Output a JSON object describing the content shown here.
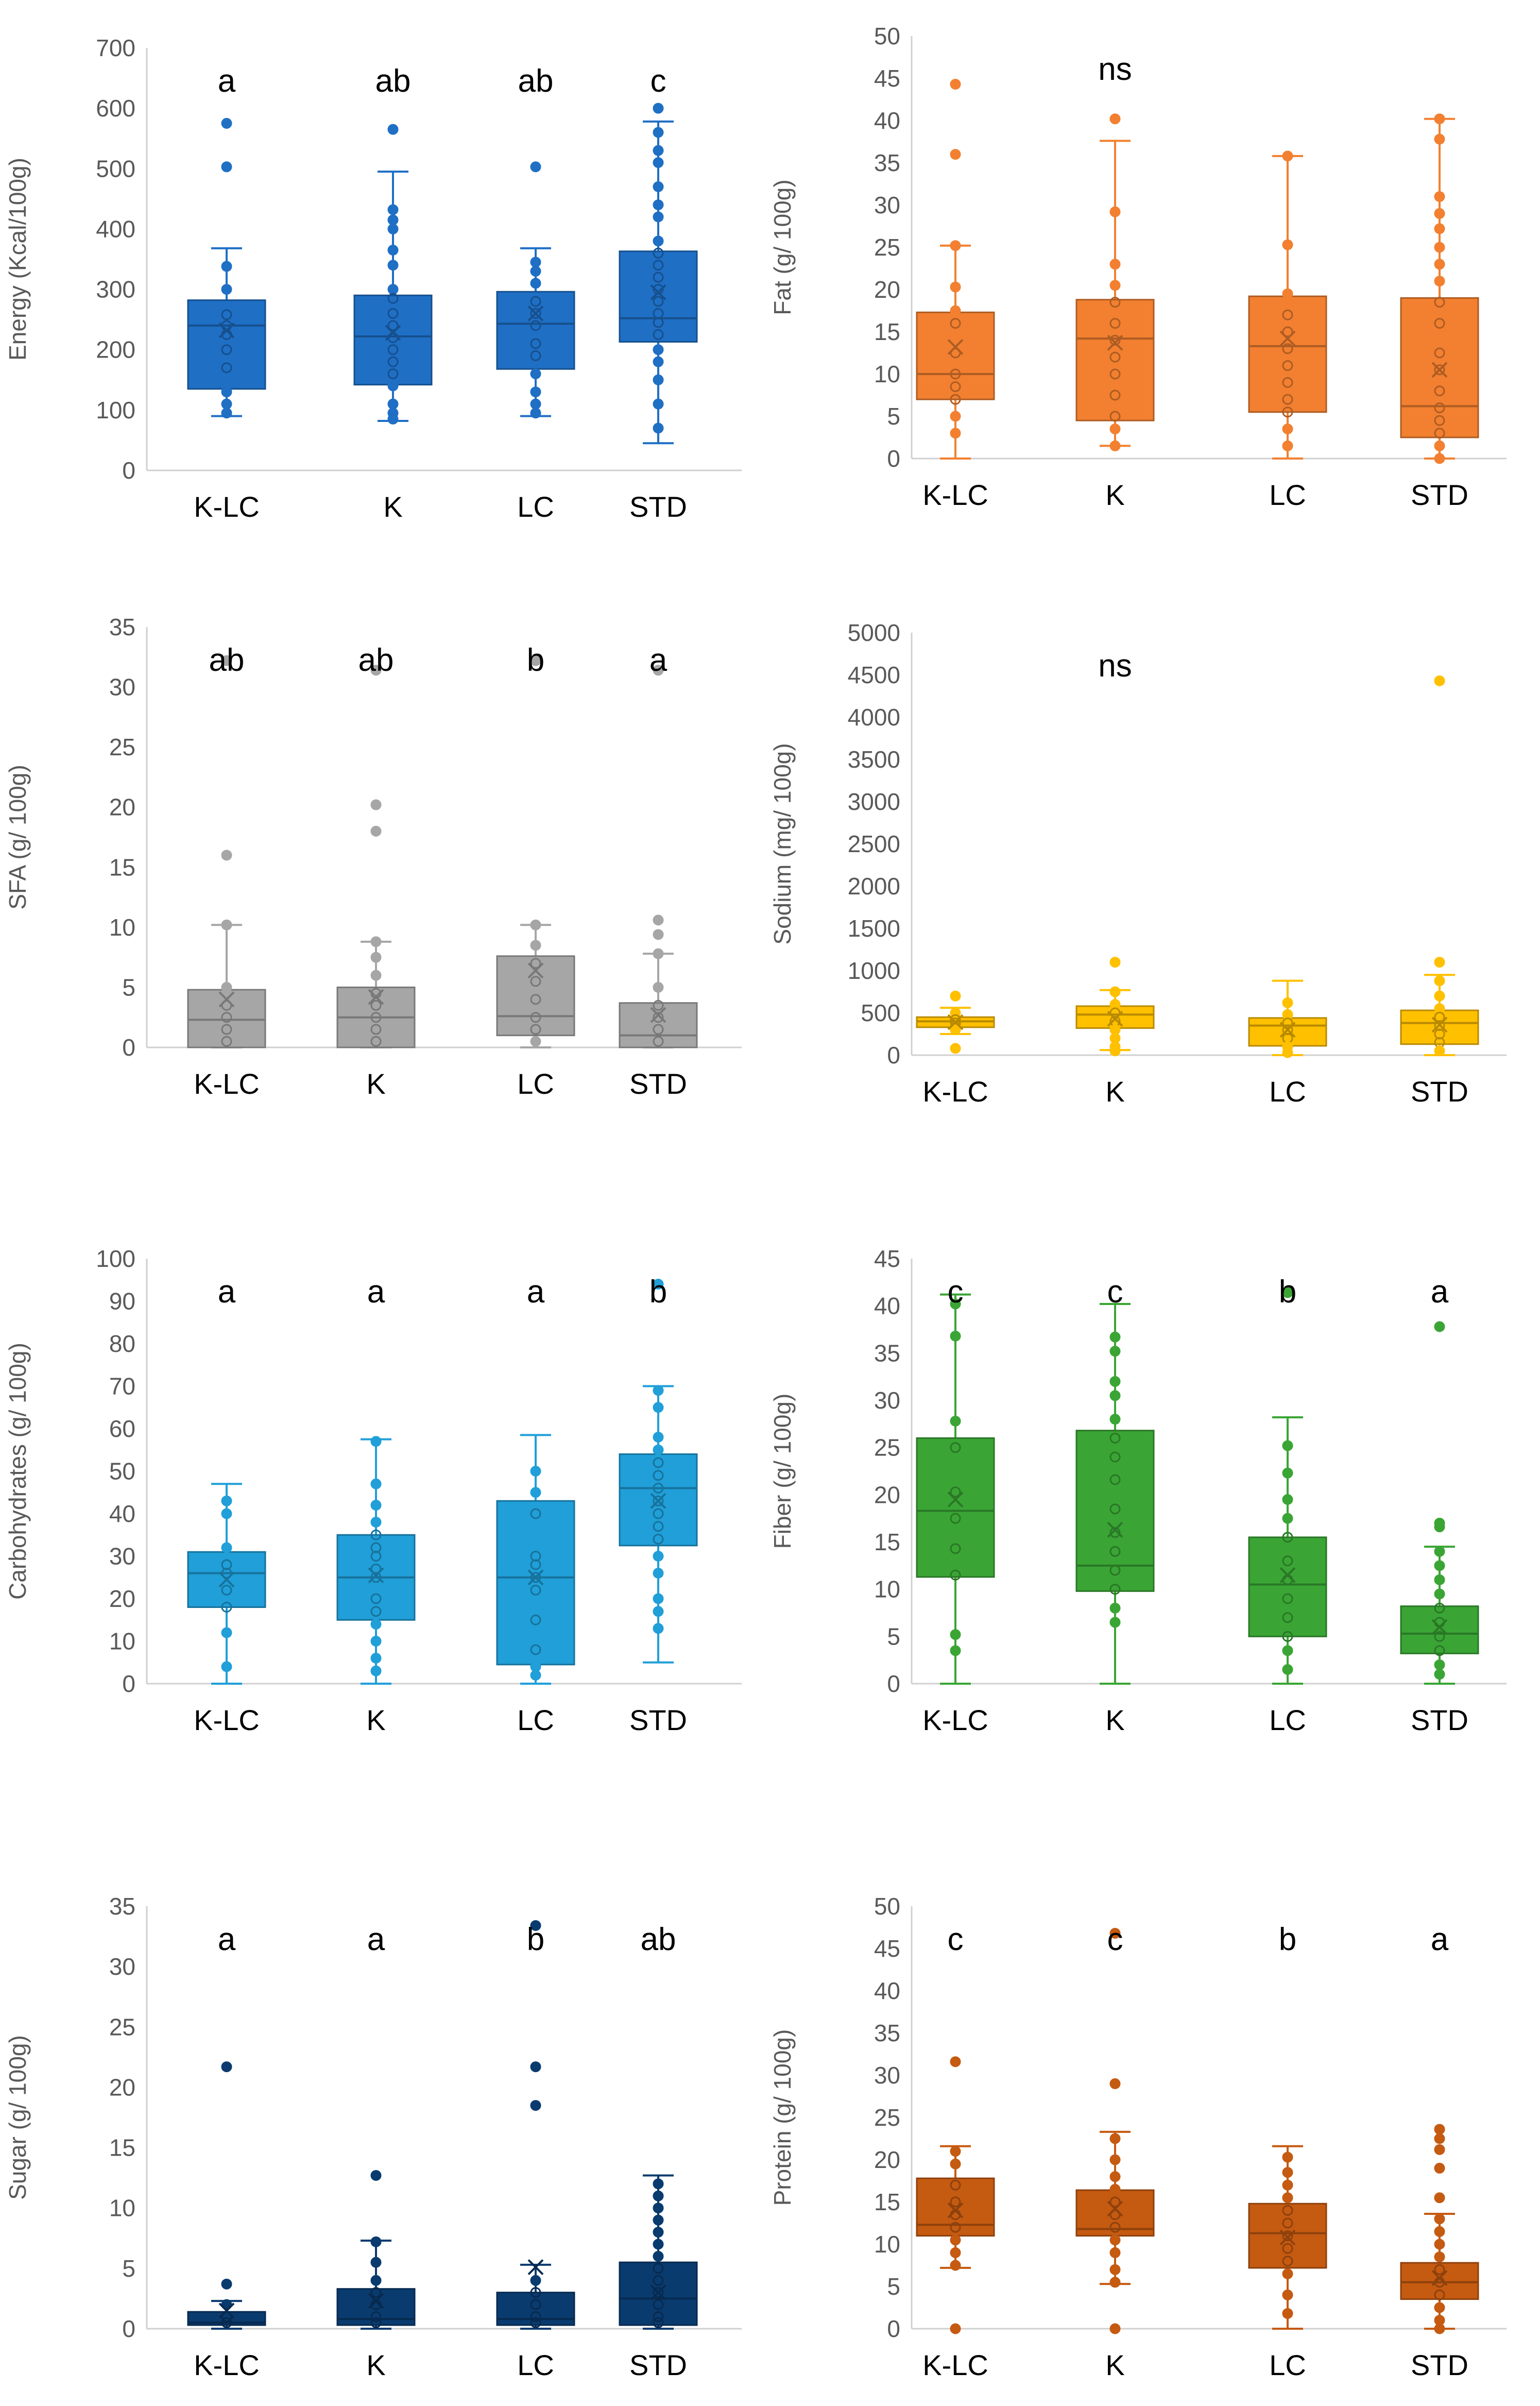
{
  "chart_data": [
    {
      "type": "box",
      "ylabel": "Energy (Kcal/100g)",
      "ylim": [
        0,
        700
      ],
      "yticks": [
        0,
        100,
        200,
        300,
        400,
        500,
        600,
        700
      ],
      "color": "#1F6FC5",
      "categories": [
        "K-LC",
        "K",
        "LC",
        "STD"
      ],
      "letters": [
        "a",
        "ab",
        "ab",
        "c"
      ],
      "boxes": [
        {
          "whisker_low": 90,
          "q1": 135,
          "median": 240,
          "q3": 282,
          "whisker_high": 368,
          "mean": 232,
          "points": [
            575,
            503,
            338,
            300,
            258,
            240,
            225,
            200,
            170,
            130,
            110,
            95
          ]
        },
        {
          "whisker_low": 82,
          "q1": 142,
          "median": 222,
          "q3": 290,
          "whisker_high": 495,
          "mean": 228,
          "points": [
            565,
            432,
            415,
            400,
            365,
            340,
            300,
            285,
            260,
            240,
            220,
            200,
            180,
            160,
            140,
            110,
            95,
            85
          ]
        },
        {
          "whisker_low": 90,
          "q1": 168,
          "median": 243,
          "q3": 296,
          "whisker_high": 368,
          "mean": 260,
          "points": [
            503,
            345,
            330,
            310,
            280,
            260,
            240,
            210,
            190,
            160,
            130,
            110,
            95
          ]
        },
        {
          "whisker_low": 45,
          "q1": 213,
          "median": 252,
          "q3": 363,
          "whisker_high": 578,
          "mean": 295,
          "points": [
            600,
            560,
            530,
            510,
            470,
            440,
            420,
            380,
            360,
            340,
            320,
            300,
            280,
            260,
            245,
            225,
            200,
            180,
            150,
            110,
            70
          ]
        }
      ]
    },
    {
      "type": "box",
      "ylabel": "Fat (g/ 100g)",
      "ylim": [
        0,
        50
      ],
      "yticks": [
        0,
        5,
        10,
        15,
        20,
        25,
        30,
        35,
        40,
        45,
        50
      ],
      "color": "#F28030",
      "categories": [
        "K-LC",
        "K",
        "LC",
        "STD"
      ],
      "letters": [
        "",
        "ns",
        "",
        ""
      ],
      "boxes": [
        {
          "whisker_low": 0,
          "q1": 7,
          "median": 10,
          "q3": 17.3,
          "whisker_high": 25.2,
          "mean": 13.2,
          "points": [
            44.3,
            36,
            25.2,
            20.3,
            17.5,
            16,
            12.5,
            10,
            8.5,
            7,
            5,
            3
          ]
        },
        {
          "whisker_low": 1.5,
          "q1": 4.5,
          "median": 14.2,
          "q3": 18.8,
          "whisker_high": 37.6,
          "mean": 13.7,
          "points": [
            40.2,
            29.2,
            23,
            20.5,
            18.5,
            16,
            14,
            12,
            10,
            7.5,
            5,
            3.5,
            1.5
          ]
        },
        {
          "whisker_low": 0,
          "q1": 5.5,
          "median": 13.3,
          "q3": 19.2,
          "whisker_high": 35.8,
          "mean": 14.2,
          "points": [
            35.8,
            25.3,
            19.5,
            17,
            15,
            13,
            11,
            9,
            7,
            5.5,
            3.5,
            1.5
          ]
        },
        {
          "whisker_low": 0,
          "q1": 2.5,
          "median": 6.2,
          "q3": 19,
          "whisker_high": 40.2,
          "mean": 10.5,
          "points": [
            40.2,
            37.8,
            31,
            29,
            27.2,
            25,
            23,
            21,
            18.5,
            16,
            12.5,
            10.5,
            8,
            6,
            4.5,
            3,
            1.5,
            0
          ]
        }
      ]
    },
    {
      "type": "box",
      "ylabel": "SFA (g/ 100g)",
      "ylim": [
        0,
        35
      ],
      "yticks": [
        0,
        5,
        10,
        15,
        20,
        25,
        30,
        35
      ],
      "color": "#A6A6A6",
      "categories": [
        "K-LC",
        "K",
        "LC",
        "STD"
      ],
      "letters": [
        "ab",
        "ab",
        "b",
        "a"
      ],
      "boxes": [
        {
          "whisker_low": 0,
          "q1": 0,
          "median": 2.3,
          "q3": 4.8,
          "whisker_high": 10.2,
          "mean": 4,
          "points": [
            32.2,
            16,
            10.2,
            5,
            3.5,
            2.5,
            1.5,
            0.5
          ]
        },
        {
          "whisker_low": 0,
          "q1": 0,
          "median": 2.5,
          "q3": 5,
          "whisker_high": 8.8,
          "mean": 4.2,
          "points": [
            31.4,
            20.2,
            18,
            8.8,
            7.5,
            6,
            4.5,
            3.5,
            2.5,
            1.5,
            0.5
          ]
        },
        {
          "whisker_low": 0,
          "q1": 1,
          "median": 2.6,
          "q3": 7.6,
          "whisker_high": 10.2,
          "mean": 6.4,
          "points": [
            32.2,
            10.2,
            8.5,
            7,
            5.5,
            4,
            2.5,
            1.5,
            0.5
          ]
        },
        {
          "whisker_low": 0,
          "q1": 0,
          "median": 1,
          "q3": 3.7,
          "whisker_high": 7.8,
          "mean": 2.7,
          "points": [
            31.4,
            10.6,
            9.4,
            7.8,
            5,
            3.5,
            2.5,
            1.5,
            0.5
          ]
        }
      ]
    },
    {
      "type": "box",
      "ylabel": "Sodium (mg/ 100g)",
      "ylim": [
        0,
        5000
      ],
      "yticks": [
        0,
        500,
        1000,
        1500,
        2000,
        2500,
        3000,
        3500,
        4000,
        4500,
        5000
      ],
      "color": "#FFC000",
      "categories": [
        "K-LC",
        "K",
        "LC",
        "STD"
      ],
      "letters": [
        "",
        "ns",
        "",
        ""
      ],
      "boxes": [
        {
          "whisker_low": 250,
          "q1": 330,
          "median": 400,
          "q3": 450,
          "whisker_high": 560,
          "mean": 390,
          "points": [
            700,
            500,
            420,
            380,
            300,
            80
          ]
        },
        {
          "whisker_low": 60,
          "q1": 320,
          "median": 480,
          "q3": 580,
          "whisker_high": 770,
          "mean": 430,
          "points": [
            1100,
            750,
            600,
            500,
            400,
            300,
            200,
            100,
            50
          ]
        },
        {
          "whisker_low": 0,
          "q1": 110,
          "median": 350,
          "q3": 440,
          "whisker_high": 880,
          "mean": 300,
          "points": [
            620,
            480,
            380,
            300,
            200,
            100,
            30
          ]
        },
        {
          "whisker_low": 0,
          "q1": 130,
          "median": 380,
          "q3": 530,
          "whisker_high": 950,
          "mean": 360,
          "points": [
            4430,
            1100,
            880,
            700,
            550,
            450,
            350,
            250,
            150,
            50
          ]
        }
      ]
    },
    {
      "type": "box",
      "ylabel": "Carbohydrates (g/ 100g)",
      "ylim": [
        0,
        100
      ],
      "yticks": [
        0,
        10,
        20,
        30,
        40,
        50,
        60,
        70,
        80,
        90,
        100
      ],
      "color": "#209FD8",
      "categories": [
        "K-LC",
        "K",
        "LC",
        "STD"
      ],
      "letters": [
        "a",
        "a",
        "a",
        "b"
      ],
      "boxes": [
        {
          "whisker_low": 0,
          "q1": 18,
          "median": 26,
          "q3": 31,
          "whisker_high": 47,
          "mean": 24.5,
          "points": [
            43,
            40,
            32,
            28,
            26,
            22,
            18,
            12,
            4
          ]
        },
        {
          "whisker_low": 0,
          "q1": 15,
          "median": 25,
          "q3": 35,
          "whisker_high": 57.5,
          "mean": 25.5,
          "points": [
            57,
            47,
            42,
            38,
            35,
            32,
            30,
            27,
            25,
            20,
            17,
            14,
            10,
            6,
            3
          ]
        },
        {
          "whisker_low": 0,
          "q1": 4.5,
          "median": 25,
          "q3": 43,
          "whisker_high": 58.5,
          "mean": 25,
          "points": [
            50,
            45,
            40,
            30,
            28,
            25,
            22,
            15,
            8,
            4,
            2
          ]
        },
        {
          "whisker_low": 5,
          "q1": 32.5,
          "median": 46,
          "q3": 54,
          "whisker_high": 70,
          "mean": 43,
          "points": [
            94,
            69,
            65,
            58,
            55,
            52,
            49,
            46,
            43,
            40,
            37,
            34,
            30,
            26,
            20,
            17,
            13
          ]
        }
      ]
    },
    {
      "type": "box",
      "ylabel": "Fiber (g/ 100g)",
      "ylim": [
        0,
        45
      ],
      "yticks": [
        0,
        5,
        10,
        15,
        20,
        25,
        30,
        35,
        40,
        45
      ],
      "color": "#3AA535",
      "categories": [
        "K-LC",
        "K",
        "LC",
        "STD"
      ],
      "letters": [
        "c",
        "c",
        "b",
        "a"
      ],
      "boxes": [
        {
          "whisker_low": 0,
          "q1": 11.3,
          "median": 18.3,
          "q3": 26,
          "whisker_high": 41.2,
          "mean": 19.5,
          "points": [
            40.2,
            36.8,
            27.8,
            25,
            20.3,
            17.5,
            14.3,
            11.5,
            5.2,
            3.5
          ]
        },
        {
          "whisker_low": 0,
          "q1": 9.8,
          "median": 12.5,
          "q3": 26.8,
          "whisker_high": 40.2,
          "mean": 16.3,
          "points": [
            36.7,
            35.2,
            32,
            30.5,
            28,
            26,
            24,
            21.6,
            18.5,
            16,
            14,
            12,
            10,
            8,
            6.5
          ]
        },
        {
          "whisker_low": 0,
          "q1": 5,
          "median": 10.5,
          "q3": 15.5,
          "whisker_high": 28.2,
          "mean": 11.5,
          "points": [
            41.4,
            25.2,
            22.3,
            19.5,
            17.5,
            15.5,
            13,
            11,
            9,
            7,
            5,
            3.5,
            1.5
          ]
        },
        {
          "whisker_low": 0,
          "q1": 3.2,
          "median": 5.3,
          "q3": 8.2,
          "whisker_high": 14.5,
          "mean": 6,
          "points": [
            37.8,
            17,
            16.6,
            14,
            12.5,
            11,
            9.5,
            8,
            6.5,
            5,
            3.5,
            2,
            1
          ]
        }
      ]
    },
    {
      "type": "box",
      "ylabel": "Sugar (g/ 100g)",
      "ylim": [
        0,
        35
      ],
      "yticks": [
        0,
        5,
        10,
        15,
        20,
        25,
        30,
        35
      ],
      "color": "#0A3B6F",
      "categories": [
        "K-LC",
        "K",
        "LC",
        "STD"
      ],
      "letters": [
        "a",
        "a",
        "b",
        "ab"
      ],
      "boxes": [
        {
          "whisker_low": 0,
          "q1": 0.3,
          "median": 0.5,
          "q3": 1.4,
          "whisker_high": 2.3,
          "mean": 1.5,
          "points": [
            21.7,
            3.7,
            2,
            1,
            0.5
          ]
        },
        {
          "whisker_low": 0,
          "q1": 0.3,
          "median": 0.8,
          "q3": 3.3,
          "whisker_high": 7.3,
          "mean": 2.3,
          "points": [
            12.7,
            7.2,
            5.5,
            4,
            3,
            2,
            1,
            0.5
          ]
        },
        {
          "whisker_low": 0,
          "q1": 0.3,
          "median": 0.8,
          "q3": 3,
          "whisker_high": 5.3,
          "mean": 5.1,
          "points": [
            33.4,
            21.7,
            18.5,
            4,
            3,
            2,
            1,
            0.5
          ]
        },
        {
          "whisker_low": 0,
          "q1": 0.3,
          "median": 2.5,
          "q3": 5.5,
          "whisker_high": 12.7,
          "mean": 3,
          "points": [
            12,
            11,
            10,
            9,
            8,
            7,
            6,
            5,
            4,
            3,
            2,
            1,
            0.5
          ]
        }
      ]
    },
    {
      "type": "box",
      "ylabel": "Protein (g/ 100g)",
      "ylim": [
        0,
        50
      ],
      "yticks": [
        0,
        5,
        10,
        15,
        20,
        25,
        30,
        35,
        40,
        45,
        50
      ],
      "color": "#C55A11",
      "categories": [
        "K-LC",
        "K",
        "LC",
        "STD"
      ],
      "letters": [
        "c",
        "c",
        "b",
        "a"
      ],
      "boxes": [
        {
          "whisker_low": 7.2,
          "q1": 11,
          "median": 12.3,
          "q3": 17.8,
          "whisker_high": 21.6,
          "mean": 14,
          "points": [
            31.6,
            21,
            19.5,
            17,
            15,
            13.5,
            12,
            10.5,
            9,
            7.5,
            0
          ]
        },
        {
          "whisker_low": 5.3,
          "q1": 11,
          "median": 11.8,
          "q3": 16.4,
          "whisker_high": 23.3,
          "mean": 14.2,
          "points": [
            46.8,
            29,
            22.5,
            20,
            18,
            16.5,
            15,
            13.5,
            12,
            10.5,
            9,
            7,
            5.5,
            0
          ]
        },
        {
          "whisker_low": 0,
          "q1": 7.2,
          "median": 11.3,
          "q3": 14.8,
          "whisker_high": 21.6,
          "mean": 10.8,
          "points": [
            20.3,
            18.5,
            17,
            15.5,
            14,
            12.5,
            11,
            9.5,
            8,
            6.5,
            4,
            1.8
          ]
        },
        {
          "whisker_low": 0,
          "q1": 3.5,
          "median": 5.5,
          "q3": 7.8,
          "whisker_high": 13.6,
          "mean": 6,
          "points": [
            23.6,
            22.5,
            21.2,
            19,
            15.5,
            13,
            11.5,
            10,
            8.5,
            7,
            5.5,
            4,
            2.5,
            1,
            0
          ]
        }
      ]
    }
  ]
}
